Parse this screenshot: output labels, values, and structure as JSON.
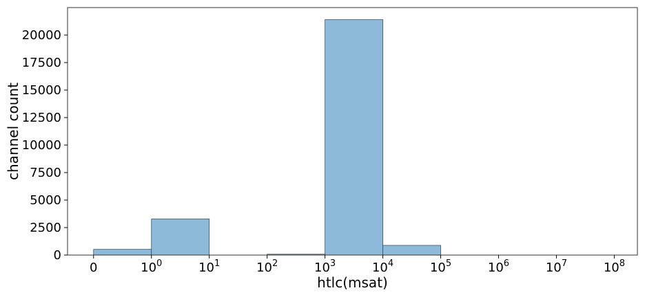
{
  "chart_data": {
    "type": "bar",
    "xlabel": "htlc(msat)",
    "ylabel": "channel count",
    "x_scale": "symlog",
    "x_ticks": [
      {
        "base": "0",
        "exp": ""
      },
      {
        "base": "10",
        "exp": "0"
      },
      {
        "base": "10",
        "exp": "1"
      },
      {
        "base": "10",
        "exp": "2"
      },
      {
        "base": "10",
        "exp": "3"
      },
      {
        "base": "10",
        "exp": "4"
      },
      {
        "base": "10",
        "exp": "5"
      },
      {
        "base": "10",
        "exp": "6"
      },
      {
        "base": "10",
        "exp": "7"
      },
      {
        "base": "10",
        "exp": "8"
      }
    ],
    "bins": [
      {
        "from": "0",
        "to": "1",
        "value": 520
      },
      {
        "from": "1",
        "to": "10",
        "value": 3280
      },
      {
        "from": "100",
        "to": "1000",
        "value": 80
      },
      {
        "from": "1000",
        "to": "10000",
        "value": 21400
      },
      {
        "from": "10000",
        "to": "100000",
        "value": 880
      }
    ],
    "ylim": [
      0,
      22500
    ],
    "y_ticks": [
      "0",
      "2500",
      "5000",
      "7500",
      "10000",
      "12500",
      "15000",
      "17500",
      "20000"
    ],
    "bar_color": "#8db9da",
    "edge_color": "#4a4a4a",
    "grid": false
  }
}
